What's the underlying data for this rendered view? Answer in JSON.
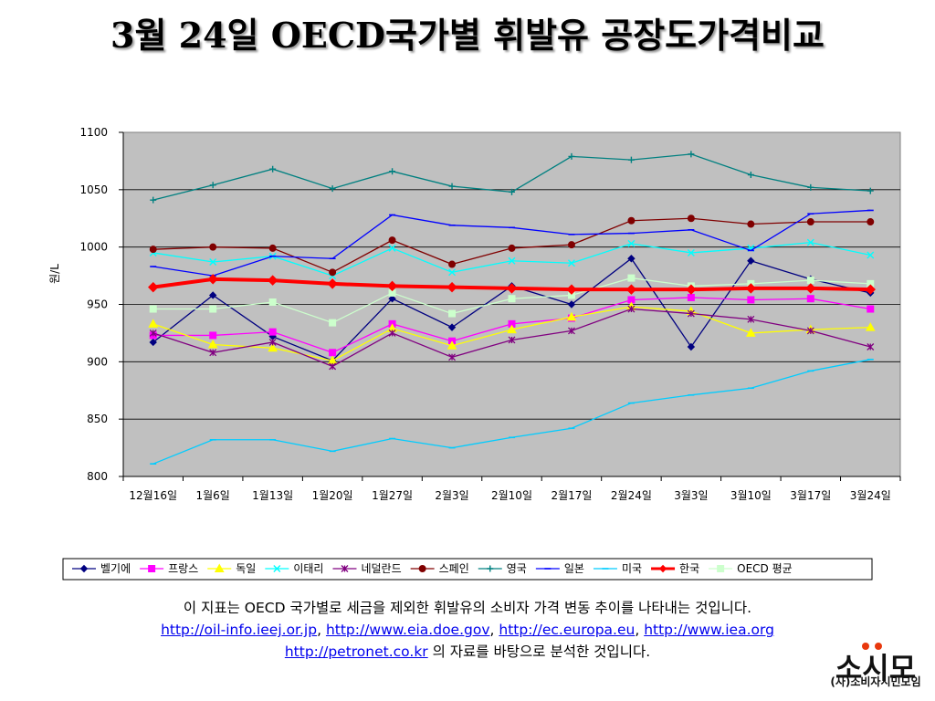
{
  "title": "3월 24일 OECD국가별 휘발유 공장도가격비교",
  "chart_data": {
    "type": "line",
    "title": "",
    "xlabel": "",
    "ylabel": "원/L",
    "ylim": [
      800,
      1100
    ],
    "yticks": [
      800,
      850,
      900,
      950,
      1000,
      1050,
      1100
    ],
    "categories": [
      "12월16일",
      "1월6일",
      "1월13일",
      "1월20일",
      "1월27일",
      "2월3일",
      "2월10일",
      "2월17일",
      "2월24일",
      "3월3일",
      "3월10일",
      "3월17일",
      "3월24일"
    ],
    "legend_position": "bottom",
    "plot_background": "#c0c0c0",
    "grid": true,
    "series": [
      {
        "name": "벨기에",
        "color": "#000080",
        "marker": "diamond",
        "values": [
          917,
          958,
          922,
          901,
          955,
          930,
          966,
          950,
          990,
          913,
          988,
          972,
          960
        ]
      },
      {
        "name": "프랑스",
        "color": "#ff00ff",
        "marker": "square",
        "values": [
          923,
          923,
          926,
          908,
          933,
          918,
          933,
          938,
          954,
          956,
          954,
          955,
          946
        ]
      },
      {
        "name": "독일",
        "color": "#ffff00",
        "marker": "triangle",
        "values": [
          933,
          915,
          912,
          901,
          929,
          914,
          928,
          939,
          948,
          944,
          925,
          928,
          930
        ]
      },
      {
        "name": "이태리",
        "color": "#00ffff",
        "marker": "x",
        "values": [
          995,
          987,
          992,
          975,
          999,
          978,
          988,
          986,
          1003,
          995,
          999,
          1004,
          993
        ]
      },
      {
        "name": "네덜란드",
        "color": "#800080",
        "marker": "star",
        "values": [
          925,
          908,
          917,
          896,
          925,
          904,
          919,
          927,
          946,
          942,
          937,
          927,
          913
        ]
      },
      {
        "name": "스페인",
        "color": "#800000",
        "marker": "circle",
        "values": [
          998,
          1000,
          999,
          978,
          1006,
          985,
          999,
          1002,
          1023,
          1025,
          1020,
          1022,
          1022
        ]
      },
      {
        "name": "영국",
        "color": "#008080",
        "marker": "plus",
        "values": [
          1041,
          1054,
          1068,
          1051,
          1066,
          1053,
          1048,
          1079,
          1076,
          1081,
          1063,
          1052,
          1049
        ]
      },
      {
        "name": "일본",
        "color": "#0000ff",
        "marker": "dash",
        "values": [
          983,
          975,
          992,
          990,
          1028,
          1019,
          1017,
          1011,
          1012,
          1015,
          997,
          1029,
          1032
        ]
      },
      {
        "name": "미국",
        "color": "#00ccff",
        "marker": "dash",
        "values": [
          811,
          832,
          832,
          822,
          833,
          825,
          834,
          842,
          864,
          871,
          877,
          892,
          902
        ]
      },
      {
        "name": "한국",
        "color": "#ff0000",
        "marker": "diamond",
        "bold": true,
        "values": [
          965,
          972,
          971,
          968,
          966,
          965,
          964,
          963,
          963,
          963,
          964,
          964,
          963
        ]
      },
      {
        "name": "OECD 평균",
        "color": "#ccffcc",
        "marker": "square",
        "values": [
          946,
          946,
          952,
          934,
          960,
          942,
          955,
          958,
          973,
          966,
          968,
          971,
          968
        ]
      }
    ]
  },
  "notes": {
    "line1": "이 지표는 OECD 국가별로 세금을 제외한 휘발유의 소비자 가격 변동 추이를 나타내는 것입니다.",
    "link1": "http://oil-info.ieej.or.jp",
    "sep1": ", ",
    "link2": "http://www.eia.doe.gov",
    "sep2": ", ",
    "link3": "http://ec.europa.eu",
    "sep3": ", ",
    "link4": "http://www.iea.org",
    "link5": "http://petronet.co.kr",
    "line3_suffix": " 의 자료를 바탕으로 분석한 것입니다."
  },
  "logo": {
    "mark_text": "소시모",
    "label": "(사)소비자시민모임"
  }
}
